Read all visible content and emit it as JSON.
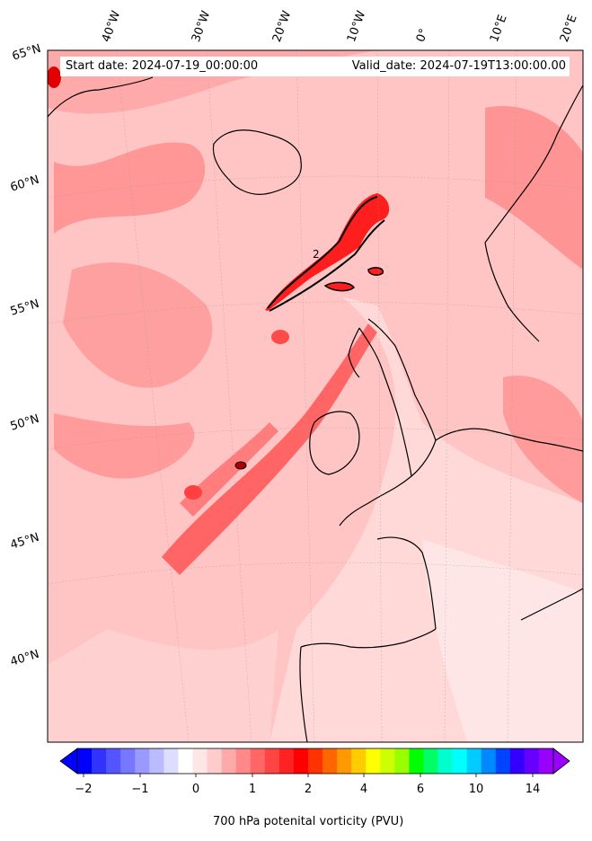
{
  "header": {
    "start_date": "Start date: 2024-07-19_00:00:00",
    "valid_date": "Valid_date: 2024-07-19T13:00:00.00"
  },
  "longitude_labels": [
    "40°W",
    "30°W",
    "20°W",
    "10°W",
    "0°",
    "10°E",
    "20°E"
  ],
  "latitude_labels": [
    "65°N",
    "60°N",
    "55°N",
    "50°N",
    "45°N",
    "40°N"
  ],
  "contour_label": "2",
  "colorbar": {
    "label": "700 hPa potenital vorticity (PVU)",
    "ticks": [
      "−2",
      "−1",
      "0",
      "1",
      "2",
      "4",
      "6",
      "10",
      "14"
    ],
    "colors": [
      "#0000ff",
      "#3333ff",
      "#5555ff",
      "#7777ff",
      "#9999ff",
      "#bbbbff",
      "#ddddff",
      "#ffffff",
      "#ffe6e6",
      "#ffcccc",
      "#ffaaaa",
      "#ff8888",
      "#ff6666",
      "#ff4444",
      "#ff2222",
      "#ff0000",
      "#ff3300",
      "#ff6600",
      "#ff9900",
      "#ffcc00",
      "#ffff00",
      "#ccff00",
      "#99ff00",
      "#00ff00",
      "#00ff66",
      "#00ffcc",
      "#00ffff",
      "#00ccff",
      "#0088ff",
      "#0044ff",
      "#3300ff",
      "#6600ff",
      "#9900ff"
    ]
  },
  "colors": {
    "background": "#ffc2c2",
    "strong_pv": "#ff2a2a",
    "medium_pv": "#ff7b7b",
    "light_pv": "#ffe4e4"
  }
}
